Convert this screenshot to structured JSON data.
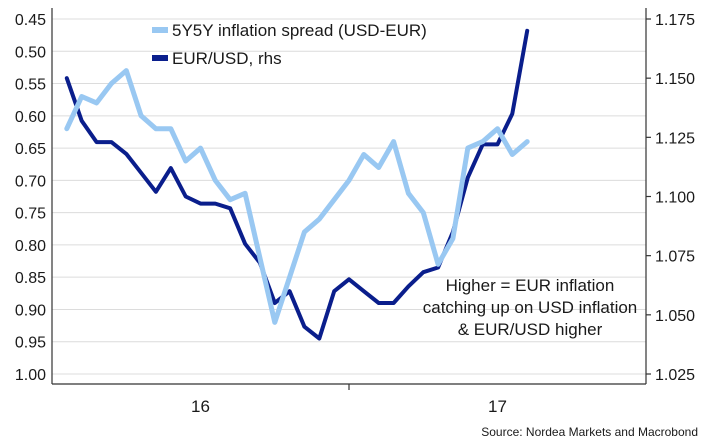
{
  "chart_data": {
    "type": "line",
    "title": "",
    "x_ticks": [
      "16",
      "17"
    ],
    "y_left": {
      "reversed": true,
      "range": [
        0.45,
        1.0
      ],
      "ticks": [
        "0.45",
        "0.50",
        "0.55",
        "0.60",
        "0.65",
        "0.70",
        "0.75",
        "0.80",
        "0.85",
        "0.90",
        "0.95",
        "1.00"
      ]
    },
    "y_right": {
      "range": [
        1.025,
        1.175
      ],
      "ticks": [
        "1.175",
        "1.150",
        "1.125",
        "1.100",
        "1.075",
        "1.050",
        "1.025"
      ]
    },
    "grid": true,
    "legend_position": "top-left",
    "series": [
      {
        "name": "5Y5Y inflation spread (USD-EUR)",
        "axis": "left",
        "color": "#99c8f2",
        "x": [
          2015.55,
          2015.6,
          2015.65,
          2015.7,
          2015.75,
          2015.8,
          2015.85,
          2015.9,
          2015.95,
          2016.0,
          2016.05,
          2016.1,
          2016.15,
          2016.2,
          2016.25,
          2016.3,
          2016.35,
          2016.4,
          2016.45,
          2016.5,
          2016.55,
          2016.6,
          2016.65,
          2016.7,
          2016.75,
          2016.8,
          2016.85,
          2016.9,
          2016.95,
          2017.0,
          2017.05,
          2017.1
        ],
        "values": [
          0.62,
          0.57,
          0.58,
          0.55,
          0.53,
          0.6,
          0.62,
          0.62,
          0.67,
          0.65,
          0.7,
          0.73,
          0.72,
          0.82,
          0.92,
          0.85,
          0.78,
          0.76,
          0.73,
          0.7,
          0.66,
          0.68,
          0.64,
          0.72,
          0.75,
          0.83,
          0.79,
          0.65,
          0.64,
          0.62,
          0.66,
          0.64
        ]
      },
      {
        "name": "EUR/USD, rhs",
        "axis": "right",
        "color": "#0a1e8c",
        "x": [
          2015.55,
          2015.6,
          2015.65,
          2015.7,
          2015.75,
          2015.8,
          2015.85,
          2015.9,
          2015.95,
          2016.0,
          2016.05,
          2016.1,
          2016.15,
          2016.2,
          2016.25,
          2016.3,
          2016.35,
          2016.4,
          2016.45,
          2016.5,
          2016.55,
          2016.6,
          2016.65,
          2016.7,
          2016.75,
          2016.8,
          2016.85,
          2016.9,
          2016.95,
          2017.0,
          2017.05,
          2017.1
        ],
        "values": [
          1.15,
          1.132,
          1.123,
          1.123,
          1.118,
          1.11,
          1.102,
          1.112,
          1.1,
          1.097,
          1.097,
          1.095,
          1.08,
          1.072,
          1.055,
          1.06,
          1.045,
          1.04,
          1.06,
          1.065,
          1.06,
          1.055,
          1.055,
          1.062,
          1.068,
          1.07,
          1.085,
          1.108,
          1.122,
          1.122,
          1.135,
          1.17
        ]
      }
    ],
    "annotation": [
      "Higher = EUR inflation",
      "catching up on USD inflation",
      "& EUR/USD higher"
    ],
    "source": "Source: Nordea Markets and Macrobond"
  }
}
